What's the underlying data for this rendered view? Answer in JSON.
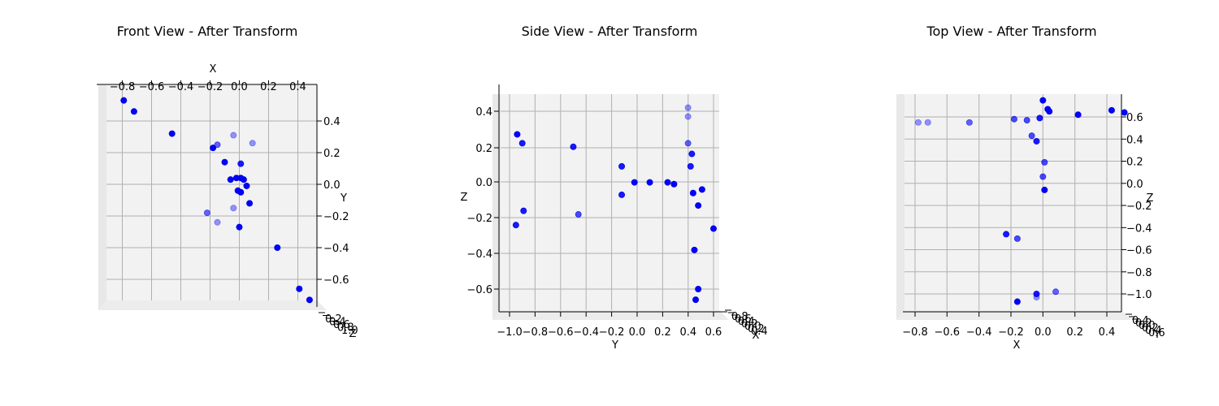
{
  "colors": {
    "point": "#0000ff",
    "pane": "#f2f2f2",
    "grid": "#b0b0b0"
  },
  "chart_data": [
    {
      "type": "scatter",
      "title": "Front View - After Transform",
      "top_label": "X",
      "side_label": "Y",
      "corner_label": "Z",
      "corner_ticks": [
        "0.2",
        "0.4",
        "0.6",
        "0.8",
        "1.0"
      ],
      "top_ticks": [
        "−0.8",
        "−0.6",
        "−0.4",
        "−0.2",
        "0.0",
        "0.2",
        "0.4"
      ],
      "side_ticks": [
        "0.4",
        "0.2",
        "0.0",
        "−0.2",
        "−0.4",
        "−0.6"
      ],
      "grid": true,
      "points": [
        {
          "x": -0.79,
          "y": 0.53,
          "depth": 1.0
        },
        {
          "x": -0.72,
          "y": 0.46,
          "depth": 1.0
        },
        {
          "x": -0.46,
          "y": 0.32,
          "depth": 1.0
        },
        {
          "x": -0.04,
          "y": 0.31,
          "depth": 0.4
        },
        {
          "x": 0.09,
          "y": 0.26,
          "depth": 0.4
        },
        {
          "x": -0.15,
          "y": 0.25,
          "depth": 0.6
        },
        {
          "x": -0.18,
          "y": 0.23,
          "depth": 1.0
        },
        {
          "x": -0.1,
          "y": 0.14,
          "depth": 1.0
        },
        {
          "x": 0.01,
          "y": 0.13,
          "depth": 0.9
        },
        {
          "x": -0.06,
          "y": 0.03,
          "depth": 1.0
        },
        {
          "x": -0.02,
          "y": 0.04,
          "depth": 1.0
        },
        {
          "x": 0.01,
          "y": 0.04,
          "depth": 1.0
        },
        {
          "x": 0.03,
          "y": 0.03,
          "depth": 1.0
        },
        {
          "x": 0.05,
          "y": -0.01,
          "depth": 1.0
        },
        {
          "x": -0.01,
          "y": -0.04,
          "depth": 1.0
        },
        {
          "x": 0.01,
          "y": -0.05,
          "depth": 1.0
        },
        {
          "x": 0.07,
          "y": -0.12,
          "depth": 1.0
        },
        {
          "x": -0.04,
          "y": -0.15,
          "depth": 0.4
        },
        {
          "x": -0.22,
          "y": -0.18,
          "depth": 0.6
        },
        {
          "x": -0.15,
          "y": -0.24,
          "depth": 0.4
        },
        {
          "x": 0.0,
          "y": -0.27,
          "depth": 1.0
        },
        {
          "x": 0.26,
          "y": -0.4,
          "depth": 1.0
        },
        {
          "x": 0.41,
          "y": -0.66,
          "depth": 1.0
        },
        {
          "x": 0.48,
          "y": -0.73,
          "depth": 1.0
        }
      ]
    },
    {
      "type": "scatter",
      "title": "Side View - After Transform",
      "bottom_label": "Y",
      "side_label": "Z",
      "corner_label": "X",
      "corner_ticks": [
        "0.8",
        "0.6",
        "0.4",
        "0.2",
        "0.0",
        "0.2",
        "0.4"
      ],
      "bottom_ticks": [
        "−1.0",
        "−0.8",
        "−0.6",
        "−0.4",
        "−0.2",
        "0.0",
        "0.2",
        "0.4",
        "0.6"
      ],
      "side_ticks": [
        "0.4",
        "0.2",
        "0.0",
        "−0.2",
        "−0.4",
        "−0.6"
      ],
      "grid": true,
      "points": [
        {
          "x": 0.4,
          "y": 0.42,
          "depth": 0.4
        },
        {
          "x": 0.4,
          "y": 0.37,
          "depth": 0.4
        },
        {
          "x": -0.94,
          "y": 0.27,
          "depth": 1.0
        },
        {
          "x": -0.9,
          "y": 0.22,
          "depth": 0.9
        },
        {
          "x": -0.5,
          "y": 0.2,
          "depth": 0.9
        },
        {
          "x": 0.4,
          "y": 0.22,
          "depth": 0.6
        },
        {
          "x": 0.43,
          "y": 0.16,
          "depth": 0.9
        },
        {
          "x": -0.12,
          "y": 0.09,
          "depth": 0.9
        },
        {
          "x": 0.42,
          "y": 0.09,
          "depth": 0.9
        },
        {
          "x": -0.02,
          "y": 0.0,
          "depth": 1.0
        },
        {
          "x": 0.1,
          "y": 0.0,
          "depth": 1.0
        },
        {
          "x": 0.24,
          "y": 0.0,
          "depth": 1.0
        },
        {
          "x": 0.29,
          "y": -0.01,
          "depth": 1.0
        },
        {
          "x": 0.51,
          "y": -0.04,
          "depth": 1.0
        },
        {
          "x": -0.12,
          "y": -0.07,
          "depth": 0.9
        },
        {
          "x": 0.44,
          "y": -0.06,
          "depth": 1.0
        },
        {
          "x": 0.48,
          "y": -0.13,
          "depth": 1.0
        },
        {
          "x": -0.89,
          "y": -0.16,
          "depth": 0.9
        },
        {
          "x": -0.46,
          "y": -0.18,
          "depth": 0.7
        },
        {
          "x": -0.95,
          "y": -0.24,
          "depth": 0.9
        },
        {
          "x": 0.6,
          "y": -0.26,
          "depth": 1.0
        },
        {
          "x": 0.45,
          "y": -0.38,
          "depth": 1.0
        },
        {
          "x": 0.48,
          "y": -0.6,
          "depth": 1.0
        },
        {
          "x": 0.46,
          "y": -0.66,
          "depth": 1.0
        }
      ]
    },
    {
      "type": "scatter",
      "title": "Top View - After Transform",
      "bottom_label": "X",
      "side_label": "Z",
      "corner_label": "Y",
      "corner_ticks": [
        "0.4",
        "0.2",
        "0.0",
        "0.2",
        "0.4",
        "0.6"
      ],
      "bottom_ticks": [
        "−0.8",
        "−0.6",
        "−0.4",
        "−0.2",
        "0.0",
        "0.2",
        "0.4"
      ],
      "side_ticks": [
        "0.6",
        "0.4",
        "0.2",
        "0.0",
        "−0.2",
        "−0.4",
        "−0.6",
        "−0.8",
        "−1.0"
      ],
      "grid": true,
      "points": [
        {
          "x": 0.0,
          "y": 0.75,
          "depth": 1.0
        },
        {
          "x": 0.03,
          "y": 0.67,
          "depth": 1.0
        },
        {
          "x": 0.04,
          "y": 0.65,
          "depth": 1.0
        },
        {
          "x": 0.43,
          "y": 0.66,
          "depth": 1.0
        },
        {
          "x": 0.51,
          "y": 0.64,
          "depth": 1.0
        },
        {
          "x": 0.22,
          "y": 0.62,
          "depth": 1.0
        },
        {
          "x": -0.18,
          "y": 0.58,
          "depth": 0.7
        },
        {
          "x": -0.1,
          "y": 0.57,
          "depth": 0.7
        },
        {
          "x": -0.02,
          "y": 0.59,
          "depth": 0.9
        },
        {
          "x": -0.78,
          "y": 0.55,
          "depth": 0.4
        },
        {
          "x": -0.72,
          "y": 0.55,
          "depth": 0.4
        },
        {
          "x": -0.46,
          "y": 0.55,
          "depth": 0.6
        },
        {
          "x": -0.07,
          "y": 0.43,
          "depth": 0.7
        },
        {
          "x": -0.04,
          "y": 0.38,
          "depth": 0.9
        },
        {
          "x": 0.01,
          "y": 0.19,
          "depth": 0.7
        },
        {
          "x": 0.0,
          "y": 0.06,
          "depth": 0.7
        },
        {
          "x": 0.01,
          "y": -0.06,
          "depth": 1.0
        },
        {
          "x": -0.23,
          "y": -0.46,
          "depth": 0.9
        },
        {
          "x": -0.16,
          "y": -0.5,
          "depth": 0.7
        },
        {
          "x": 0.08,
          "y": -0.98,
          "depth": 0.6
        },
        {
          "x": -0.04,
          "y": -1.0,
          "depth": 0.9
        },
        {
          "x": -0.04,
          "y": -1.03,
          "depth": 0.4
        },
        {
          "x": -0.16,
          "y": -1.07,
          "depth": 1.0
        }
      ]
    }
  ]
}
